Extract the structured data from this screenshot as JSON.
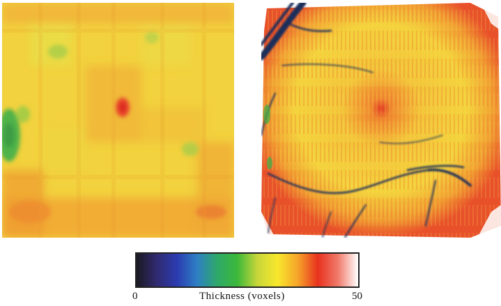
{
  "colorbar": {
    "min_label": "0",
    "max_label": "50",
    "title": "Thickness  (voxels)",
    "stops": [
      "#1a1a22",
      "#302a70",
      "#2b3bb0",
      "#2e7fc4",
      "#2ea86a",
      "#3cb83a",
      "#c8d63a",
      "#f8e82c",
      "#f6a42a",
      "#e8321e",
      "#f07a6a",
      "#ffffff"
    ]
  },
  "colors": {
    "yellow": "#f2d640",
    "orange": "#f0a534",
    "red": "#e23a24",
    "green": "#4fb34a",
    "vessel": "#1d2e5a"
  }
}
